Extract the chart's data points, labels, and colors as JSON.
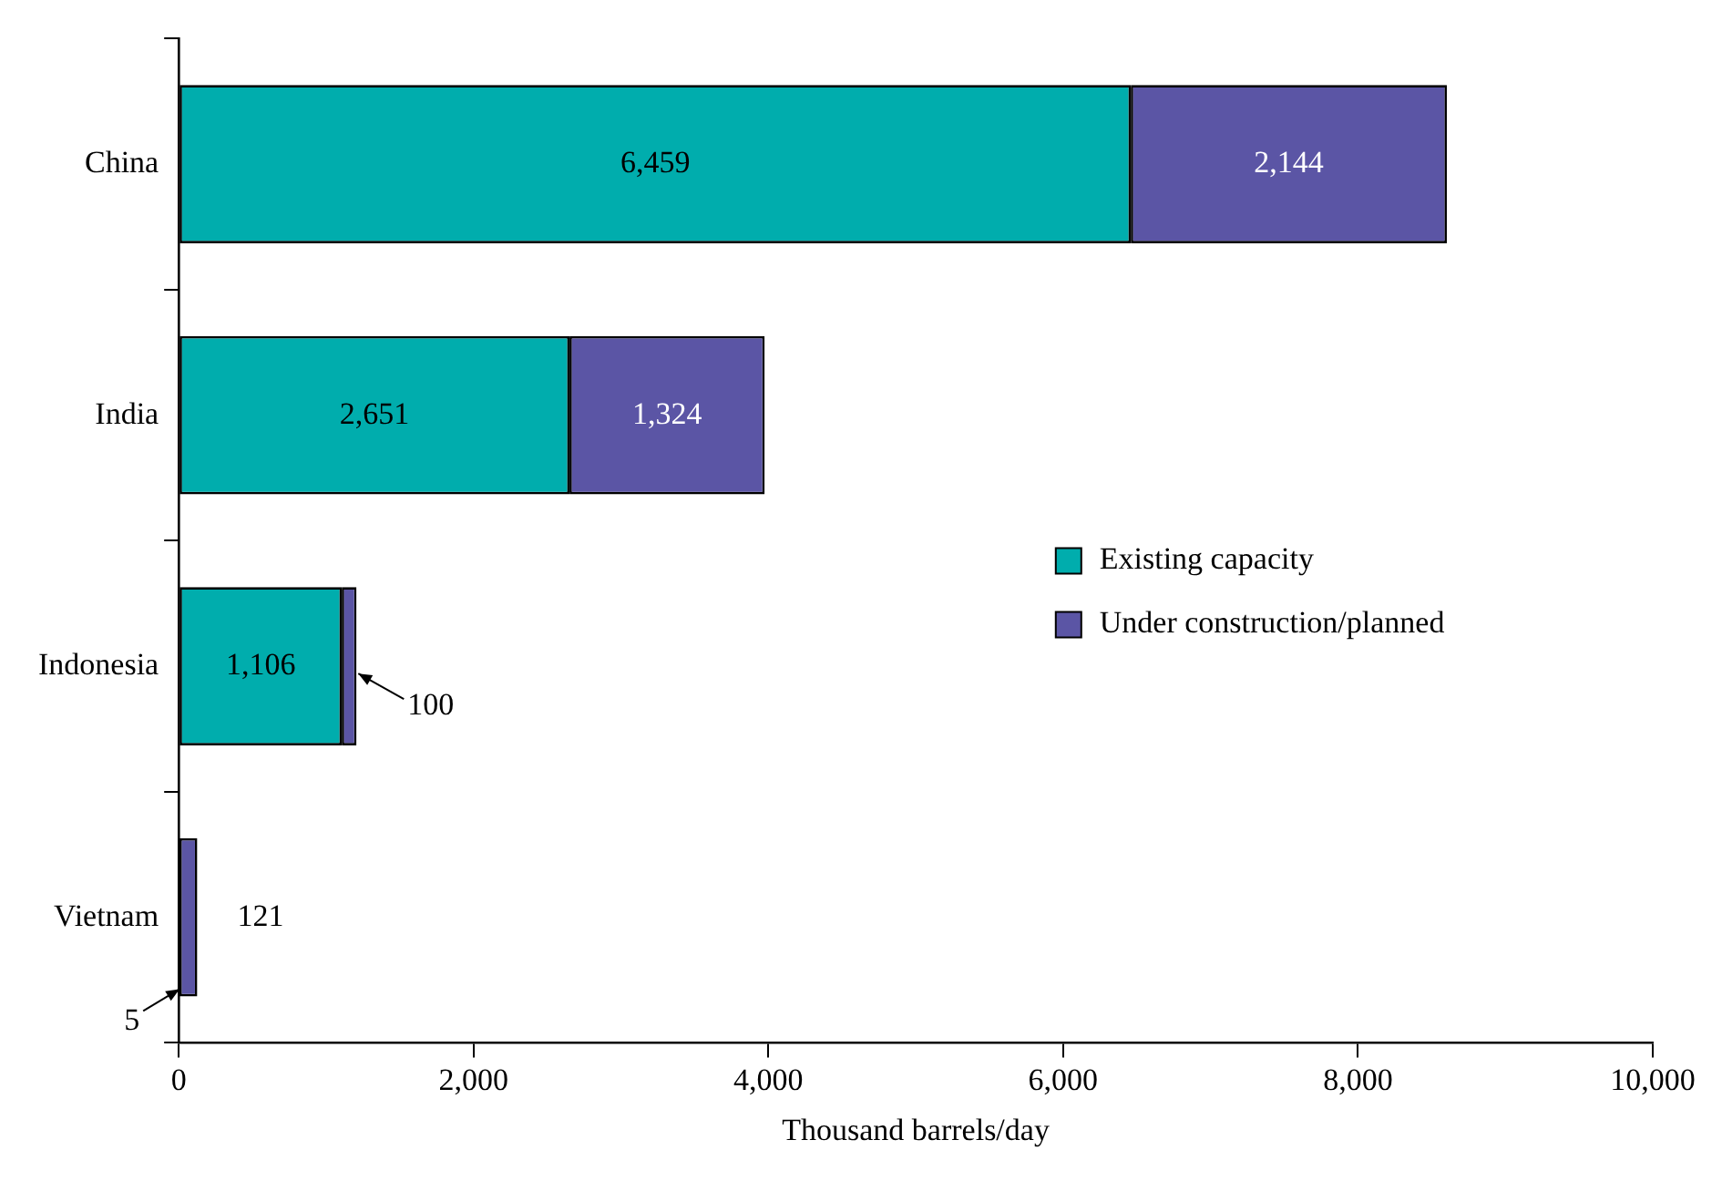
{
  "chart_data": {
    "type": "bar",
    "orientation": "horizontal",
    "stacked": true,
    "xlabel": "Thousand barrels/day",
    "categories": [
      "China",
      "India",
      "Indonesia",
      "Vietnam"
    ],
    "series": [
      {
        "name": "Existing capacity",
        "color": "#00adad",
        "values": [
          6459,
          2651,
          1106,
          5
        ],
        "value_labels": [
          "6,459",
          "2,651",
          "1,106",
          "5"
        ]
      },
      {
        "name": "Under construction/planned",
        "color": "#5b55a5",
        "values": [
          2144,
          1324,
          100,
          121
        ],
        "value_labels": [
          "2,144",
          "1,324",
          "100",
          "121"
        ]
      }
    ],
    "xlim": [
      0,
      10000
    ],
    "xticks": [
      0,
      {
        "value": 2000,
        "label": "2,000"
      },
      {
        "value": 4000,
        "label": "4,000"
      },
      {
        "value": 6000,
        "label": "6,000"
      },
      {
        "value": 8000,
        "label": "8,000"
      },
      {
        "value": 10000,
        "label": "10,000"
      }
    ],
    "grid": false,
    "legend": "right"
  }
}
